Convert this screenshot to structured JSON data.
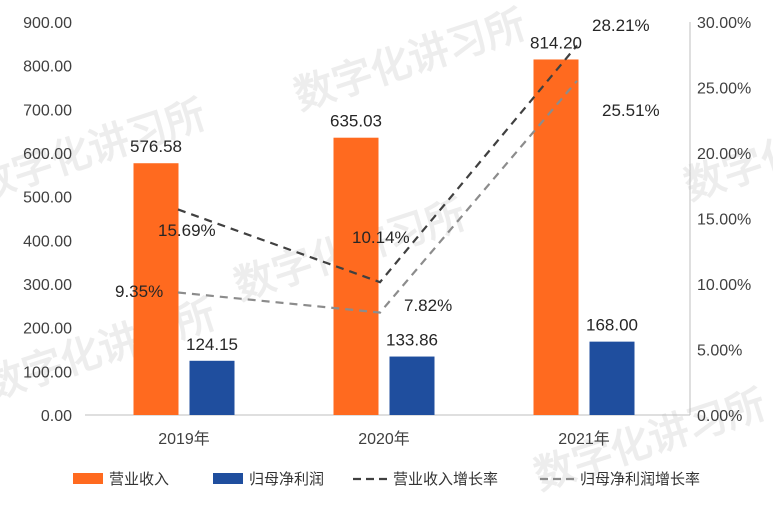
{
  "chart_data": {
    "type": "bar",
    "categories": [
      "2019年",
      "2020年",
      "2021年"
    ],
    "series": [
      {
        "name": "营业收入",
        "kind": "bar",
        "axis": "left",
        "color": "#FF6A1F",
        "values": [
          576.58,
          635.03,
          814.2
        ],
        "labels": [
          "576.58",
          "635.03",
          "814.20"
        ]
      },
      {
        "name": "归母净利润",
        "kind": "bar",
        "axis": "left",
        "color": "#1F4E9E",
        "values": [
          124.15,
          133.86,
          168.0
        ],
        "labels": [
          "124.15",
          "133.86",
          "168.00"
        ]
      },
      {
        "name": "营业收入增长率",
        "kind": "line",
        "dash": "dashed",
        "axis": "right",
        "color": "#404040",
        "values": [
          15.69,
          10.14,
          28.21
        ],
        "labels": [
          "15.69%",
          "10.14%",
          "28.21%"
        ]
      },
      {
        "name": "归母净利润增长率",
        "kind": "line",
        "dash": "dashed",
        "axis": "right",
        "color": "#8C8C8C",
        "values": [
          9.35,
          7.82,
          25.51
        ],
        "labels": [
          "9.35%",
          "7.82%",
          "25.51%"
        ]
      }
    ],
    "y_left": {
      "min": 0,
      "max": 900,
      "ticks": [
        "0.00",
        "100.00",
        "200.00",
        "300.00",
        "400.00",
        "500.00",
        "600.00",
        "700.00",
        "800.00",
        "900.00"
      ]
    },
    "y_right": {
      "min": 0,
      "max": 30,
      "ticks": [
        "0.00%",
        "5.00%",
        "10.00%",
        "15.00%",
        "20.00%",
        "25.00%",
        "30.00%"
      ]
    },
    "grid": false,
    "legend_position": "bottom",
    "watermark": "数字化讲习所"
  }
}
